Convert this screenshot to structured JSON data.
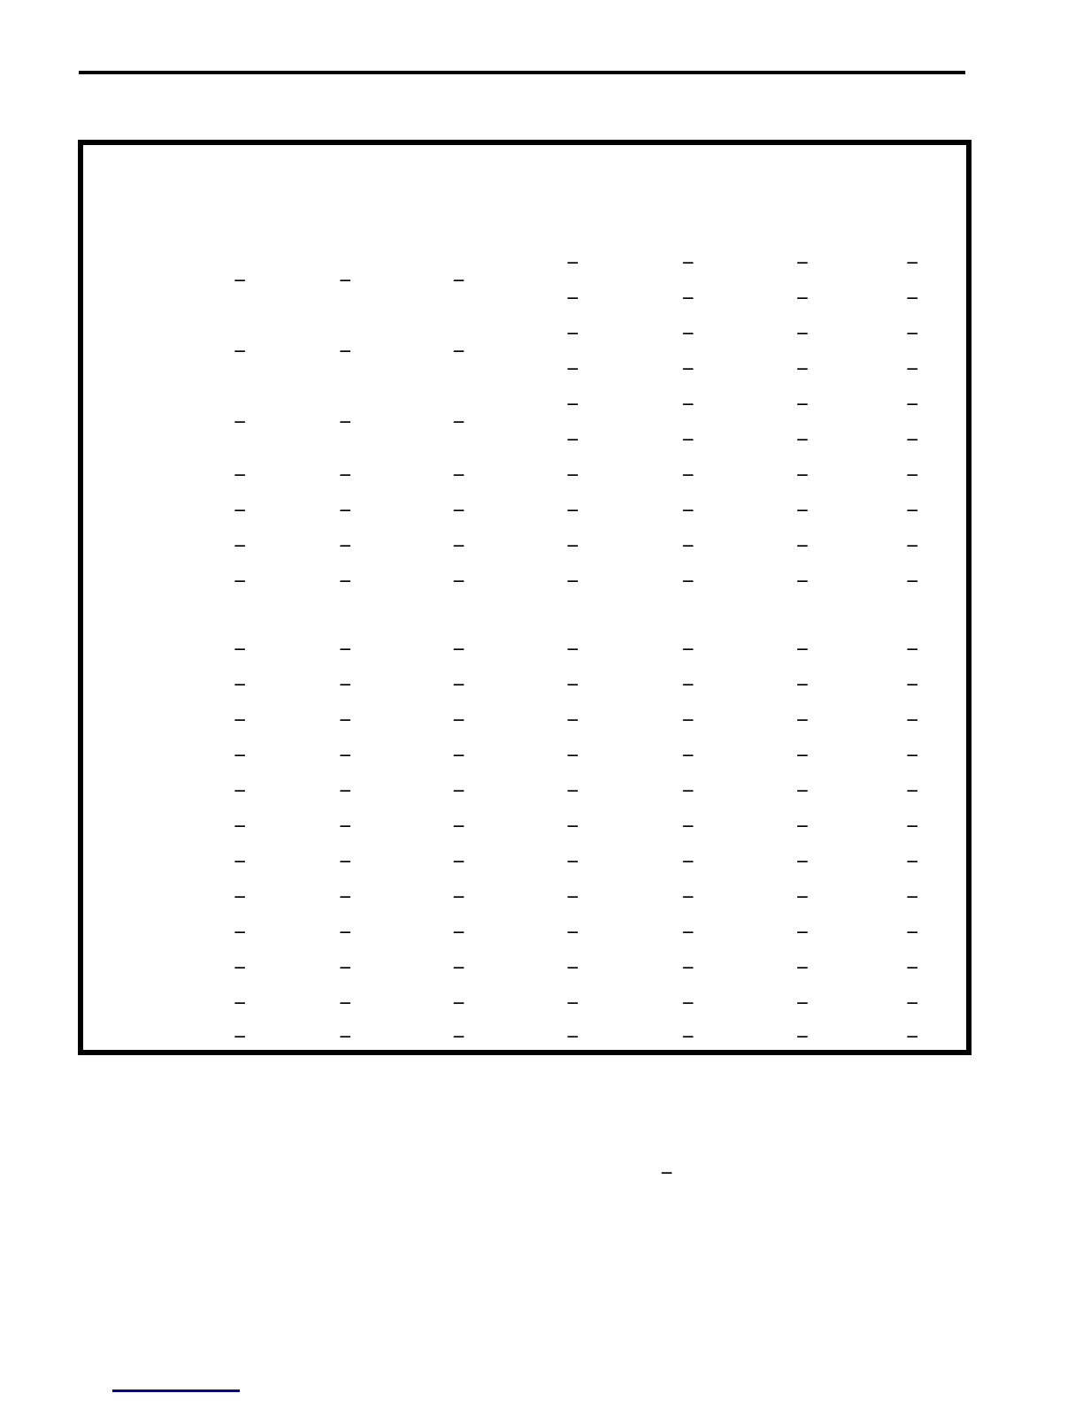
{
  "page": {
    "background": "#ffffff"
  },
  "top_rule": {
    "color": "#000000"
  },
  "table": {
    "dash": "—",
    "line_color": "#000000",
    "columns": 8,
    "header": {
      "rows": 2,
      "row1_merged_pairs": [
        "col3-col4",
        "col5-col6",
        "col7-col8"
      ]
    },
    "top_section": {
      "groups": 3,
      "subrows_per_group": 2,
      "single_rows": 4
    },
    "divider_band_rows": 1,
    "bottom_section": {
      "rows": 12
    }
  },
  "footnote": {
    "dash": "—"
  },
  "footer_link": {
    "underline_color": "#00008B"
  }
}
